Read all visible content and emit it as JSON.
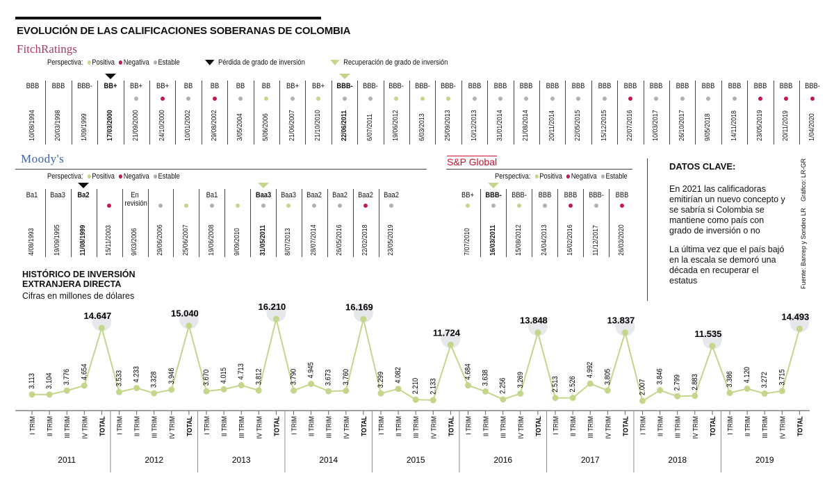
{
  "title": "EVOLUCIÓN DE LAS CALIFICACIONES  SOBERANAS DE COLOMBIA",
  "colors": {
    "positive": "#c3d68b",
    "negative": "#c2185b",
    "stable": "#b0b0b0",
    "line": "#c3d68b"
  },
  "fitch": {
    "logo": "FitchRatings",
    "legend": {
      "perspectiva": "Perspectiva:",
      "positiva": "Positiva",
      "negativa": "Negativa",
      "estable": "Estable",
      "perdida": "Pérdida de grado de inversión",
      "recuperacion": "Recuperación de grado de inversión"
    },
    "ratings": [
      {
        "r": "BBB",
        "d": "10/08/1994",
        "o": "",
        "b": false,
        "m": ""
      },
      {
        "r": "BBB",
        "d": "20/03/1998",
        "o": "",
        "b": false,
        "m": ""
      },
      {
        "r": "BBB-",
        "d": "1/09/1999",
        "o": "",
        "b": false,
        "m": ""
      },
      {
        "r": "BB+",
        "d": "17/03/2000",
        "o": "",
        "b": true,
        "m": "loss"
      },
      {
        "r": "BB+",
        "d": "21/09/2000",
        "o": "estable",
        "b": false,
        "m": ""
      },
      {
        "r": "BB+",
        "d": "24/10/2000",
        "o": "negativa",
        "b": false,
        "m": ""
      },
      {
        "r": "BB",
        "d": "10/01/2002",
        "o": "estable",
        "b": false,
        "m": ""
      },
      {
        "r": "BB",
        "d": "29/08/2002",
        "o": "negativa",
        "b": false,
        "m": ""
      },
      {
        "r": "BB",
        "d": "3/05/2004",
        "o": "estable",
        "b": false,
        "m": ""
      },
      {
        "r": "BB",
        "d": "5/06/2006",
        "o": "positiva",
        "b": false,
        "m": ""
      },
      {
        "r": "BB+",
        "d": "21/06/2007",
        "o": "estable",
        "b": false,
        "m": ""
      },
      {
        "r": "BB+",
        "d": "21/10/2010",
        "o": "positiva",
        "b": false,
        "m": ""
      },
      {
        "r": "BBB-",
        "d": "22/06/2011",
        "o": "estable",
        "b": true,
        "m": "recovery"
      },
      {
        "r": "BBB-",
        "d": "6/07/2011",
        "o": "estable",
        "b": false,
        "m": ""
      },
      {
        "r": "BBB-",
        "d": "19/06/2012",
        "o": "positiva",
        "b": false,
        "m": ""
      },
      {
        "r": "BBB-",
        "d": "6/03/2013",
        "o": "positiva",
        "b": false,
        "m": ""
      },
      {
        "r": "BBB-",
        "d": "25/09/2013",
        "o": "positiva",
        "b": false,
        "m": ""
      },
      {
        "r": "BBB",
        "d": "10/12/2013",
        "o": "estable",
        "b": false,
        "m": ""
      },
      {
        "r": "BBB",
        "d": "31/01/2014",
        "o": "estable",
        "b": false,
        "m": ""
      },
      {
        "r": "BBB",
        "d": "21/08/2014",
        "o": "estable",
        "b": false,
        "m": ""
      },
      {
        "r": "BBB",
        "d": "20/11/2014",
        "o": "estable",
        "b": false,
        "m": ""
      },
      {
        "r": "BBB",
        "d": "22/05/2015",
        "o": "estable",
        "b": false,
        "m": ""
      },
      {
        "r": "BBB",
        "d": "15/12/2015",
        "o": "estable",
        "b": false,
        "m": ""
      },
      {
        "r": "BBB",
        "d": "22/07/2016",
        "o": "negativa",
        "b": false,
        "m": ""
      },
      {
        "r": "BBB",
        "d": "10/03/2017",
        "o": "estable",
        "b": false,
        "m": ""
      },
      {
        "r": "BBB",
        "d": "26/10/2017",
        "o": "estable",
        "b": false,
        "m": ""
      },
      {
        "r": "BBB",
        "d": "9/05/2018",
        "o": "estable",
        "b": false,
        "m": ""
      },
      {
        "r": "BBB",
        "d": "14/11/2018",
        "o": "estable",
        "b": false,
        "m": ""
      },
      {
        "r": "BBB",
        "d": "23/05/2019",
        "o": "negativa",
        "b": false,
        "m": ""
      },
      {
        "r": "BBB",
        "d": "20/11/2019",
        "o": "negativa",
        "b": false,
        "m": ""
      },
      {
        "r": "BBB-",
        "d": "1/04/2020",
        "o": "negativa",
        "b": false,
        "m": ""
      }
    ]
  },
  "moodys": {
    "logo": "Moody's",
    "legend": {
      "perspectiva": "Perspectiva:",
      "positiva": "Positiva",
      "negativa": "Negativa",
      "estable": "Estable"
    },
    "ratings": [
      {
        "r": "Ba1",
        "d": "4/08/1993",
        "o": "",
        "b": false,
        "m": ""
      },
      {
        "r": "Baa3",
        "d": "19/09/1995",
        "o": "",
        "b": false,
        "m": ""
      },
      {
        "r": "Ba2",
        "d": "11/08/1999",
        "o": "",
        "b": true,
        "m": "loss"
      },
      {
        "r": "",
        "d": "15/11/2003",
        "o": "negativa",
        "b": false,
        "m": ""
      },
      {
        "r": "En revisión",
        "d": "9/03/2006",
        "o": "",
        "b": false,
        "m": ""
      },
      {
        "r": "",
        "d": "29/06/2006",
        "o": "estable",
        "b": false,
        "m": ""
      },
      {
        "r": "",
        "d": "25/06/2007",
        "o": "positiva",
        "b": false,
        "m": ""
      },
      {
        "r": "Ba1",
        "d": "19/06/2008",
        "o": "estable",
        "b": false,
        "m": ""
      },
      {
        "r": "",
        "d": "9/09/2010",
        "o": "positiva",
        "b": false,
        "m": ""
      },
      {
        "r": "Baa3",
        "d": "31/05/2011",
        "o": "estable",
        "b": true,
        "m": "recovery"
      },
      {
        "r": "Baa3",
        "d": "8/07/2013",
        "o": "positiva",
        "b": false,
        "m": ""
      },
      {
        "r": "Baa2",
        "d": "28/07/2014",
        "o": "estable",
        "b": false,
        "m": ""
      },
      {
        "r": "Baa2",
        "d": "26/05/2016",
        "o": "estable",
        "b": false,
        "m": ""
      },
      {
        "r": "Baa2",
        "d": "22/02/2018",
        "o": "negativa",
        "b": false,
        "m": ""
      },
      {
        "r": "Baa2",
        "d": "23/05/2019",
        "o": "estable",
        "b": false,
        "m": ""
      }
    ]
  },
  "sp": {
    "logo": "S&P Global",
    "legend": {
      "perspectiva": "Perspectiva:",
      "positiva": "Positiva",
      "negativa": "Negativa",
      "estable": "Estable"
    },
    "ratings": [
      {
        "r": "BB+",
        "d": "7/07/2010",
        "o": "positiva",
        "b": false,
        "m": ""
      },
      {
        "r": "BBB-",
        "d": "16/03/2011",
        "o": "estable",
        "b": true,
        "m": "recovery"
      },
      {
        "r": "BBB-",
        "d": "15/08/2012",
        "o": "positiva",
        "b": false,
        "m": ""
      },
      {
        "r": "BBB",
        "d": "24/04/2013",
        "o": "estable",
        "b": false,
        "m": ""
      },
      {
        "r": "BBB",
        "d": "16/02/2016",
        "o": "negativa",
        "b": false,
        "m": ""
      },
      {
        "r": "BBB-",
        "d": "11/12/2017",
        "o": "estable",
        "b": false,
        "m": ""
      },
      {
        "r": "BBB",
        "d": "26/03/2020",
        "o": "negativa",
        "b": false,
        "m": ""
      }
    ]
  },
  "datos": {
    "title": "DATOS CLAVE:",
    "p1": "En 2021 las calificadoras emitirían un nuevo concepto y se sabría si Colombia se mantiene como país con grado de inversión o no",
    "p2": "La última vez que el país bajó en la escala se demoró una década en recuperar el estatus",
    "credit1": "Gráfico: LR-GR",
    "credit2": "Fuente: Banrep y Sondeo LR"
  },
  "ied": {
    "title": "HISTÓRICO DE INVERSIÓN EXTRANJERA DIRECTA",
    "subtitle": "Cifras en millones de dólares"
  },
  "chart_data": {
    "type": "line",
    "title": "HISTÓRICO DE INVERSIÓN EXTRANJERA DIRECTA",
    "subtitle": "Cifras en millones de dólares",
    "years": [
      "2011",
      "2012",
      "2013",
      "2014",
      "2015",
      "2016",
      "2017",
      "2018",
      "2019"
    ],
    "sub_labels": [
      "I TRIM",
      "II TRIM",
      "III TRIM",
      "IV TRIM",
      "TOTAL"
    ],
    "series": [
      {
        "year": "2011",
        "values": [
          3113,
          3104,
          3776,
          4654,
          14647
        ],
        "labels": [
          "3.113",
          "3.104",
          "3.776",
          "4.654",
          "14.647"
        ]
      },
      {
        "year": "2012",
        "values": [
          3533,
          4233,
          3328,
          3946,
          15040
        ],
        "labels": [
          "3.533",
          "4.233",
          "3.328",
          "3.946",
          "15.040"
        ]
      },
      {
        "year": "2013",
        "values": [
          3670,
          4015,
          4713,
          3812,
          16210
        ],
        "labels": [
          "3.670",
          "4.015",
          "4.713",
          "3.812",
          "16.210"
        ]
      },
      {
        "year": "2014",
        "values": [
          3790,
          4945,
          3673,
          3760,
          16169
        ],
        "labels": [
          "3.790",
          "4.945",
          "3.673",
          "3.760",
          "16.169"
        ]
      },
      {
        "year": "2015",
        "values": [
          3299,
          4082,
          2210,
          2133,
          11724
        ],
        "labels": [
          "3.299",
          "4.082",
          "2.210",
          "2.133",
          "11.724"
        ]
      },
      {
        "year": "2016",
        "values": [
          4684,
          3638,
          2256,
          3269,
          13848
        ],
        "labels": [
          "4.684",
          "3.638",
          "2.256",
          "3.269",
          "13.848"
        ]
      },
      {
        "year": "2017",
        "values": [
          2513,
          2526,
          4992,
          3805,
          13837
        ],
        "labels": [
          "2.513",
          "2.526",
          "4.992",
          "3.805",
          "13.837"
        ]
      },
      {
        "year": "2018",
        "values": [
          2007,
          3846,
          2799,
          2883,
          11535
        ],
        "labels": [
          "2.007",
          "3.846",
          "2.799",
          "2.883",
          "11.535"
        ]
      },
      {
        "year": "2019",
        "values": [
          3386,
          4120,
          3272,
          3715,
          14493
        ],
        "labels": [
          "3.386",
          "4.120",
          "3.272",
          "3.715",
          "14.493"
        ]
      }
    ]
  }
}
